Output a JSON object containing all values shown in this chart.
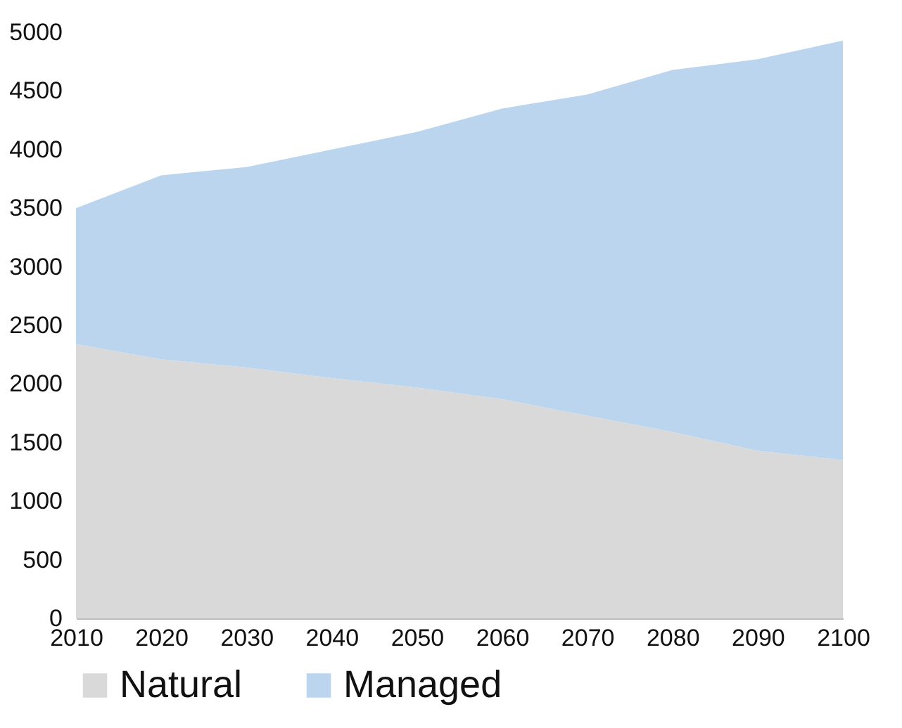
{
  "chart_data": {
    "type": "area",
    "stacked": true,
    "x": [
      2010,
      2020,
      2030,
      2040,
      2050,
      2060,
      2070,
      2080,
      2090,
      2100
    ],
    "xlim": [
      2010,
      2100
    ],
    "xticks": [
      2010,
      2020,
      2030,
      2040,
      2050,
      2060,
      2070,
      2080,
      2090,
      2100
    ],
    "ylim": [
      0,
      5000
    ],
    "yticks": [
      0,
      500,
      1000,
      1500,
      2000,
      2500,
      3000,
      3500,
      4000,
      4500,
      5000
    ],
    "series": [
      {
        "name": "Natural",
        "color": "#d9d9d9",
        "values": [
          2340,
          2210,
          2140,
          2050,
          1970,
          1870,
          1730,
          1590,
          1430,
          1350
        ]
      },
      {
        "name": "Managed",
        "color": "#bcd5ef",
        "values": [
          1160,
          1570,
          1710,
          1950,
          2180,
          2480,
          2740,
          3090,
          3340,
          3580
        ]
      }
    ],
    "legend": "bottom",
    "grid": false
  }
}
